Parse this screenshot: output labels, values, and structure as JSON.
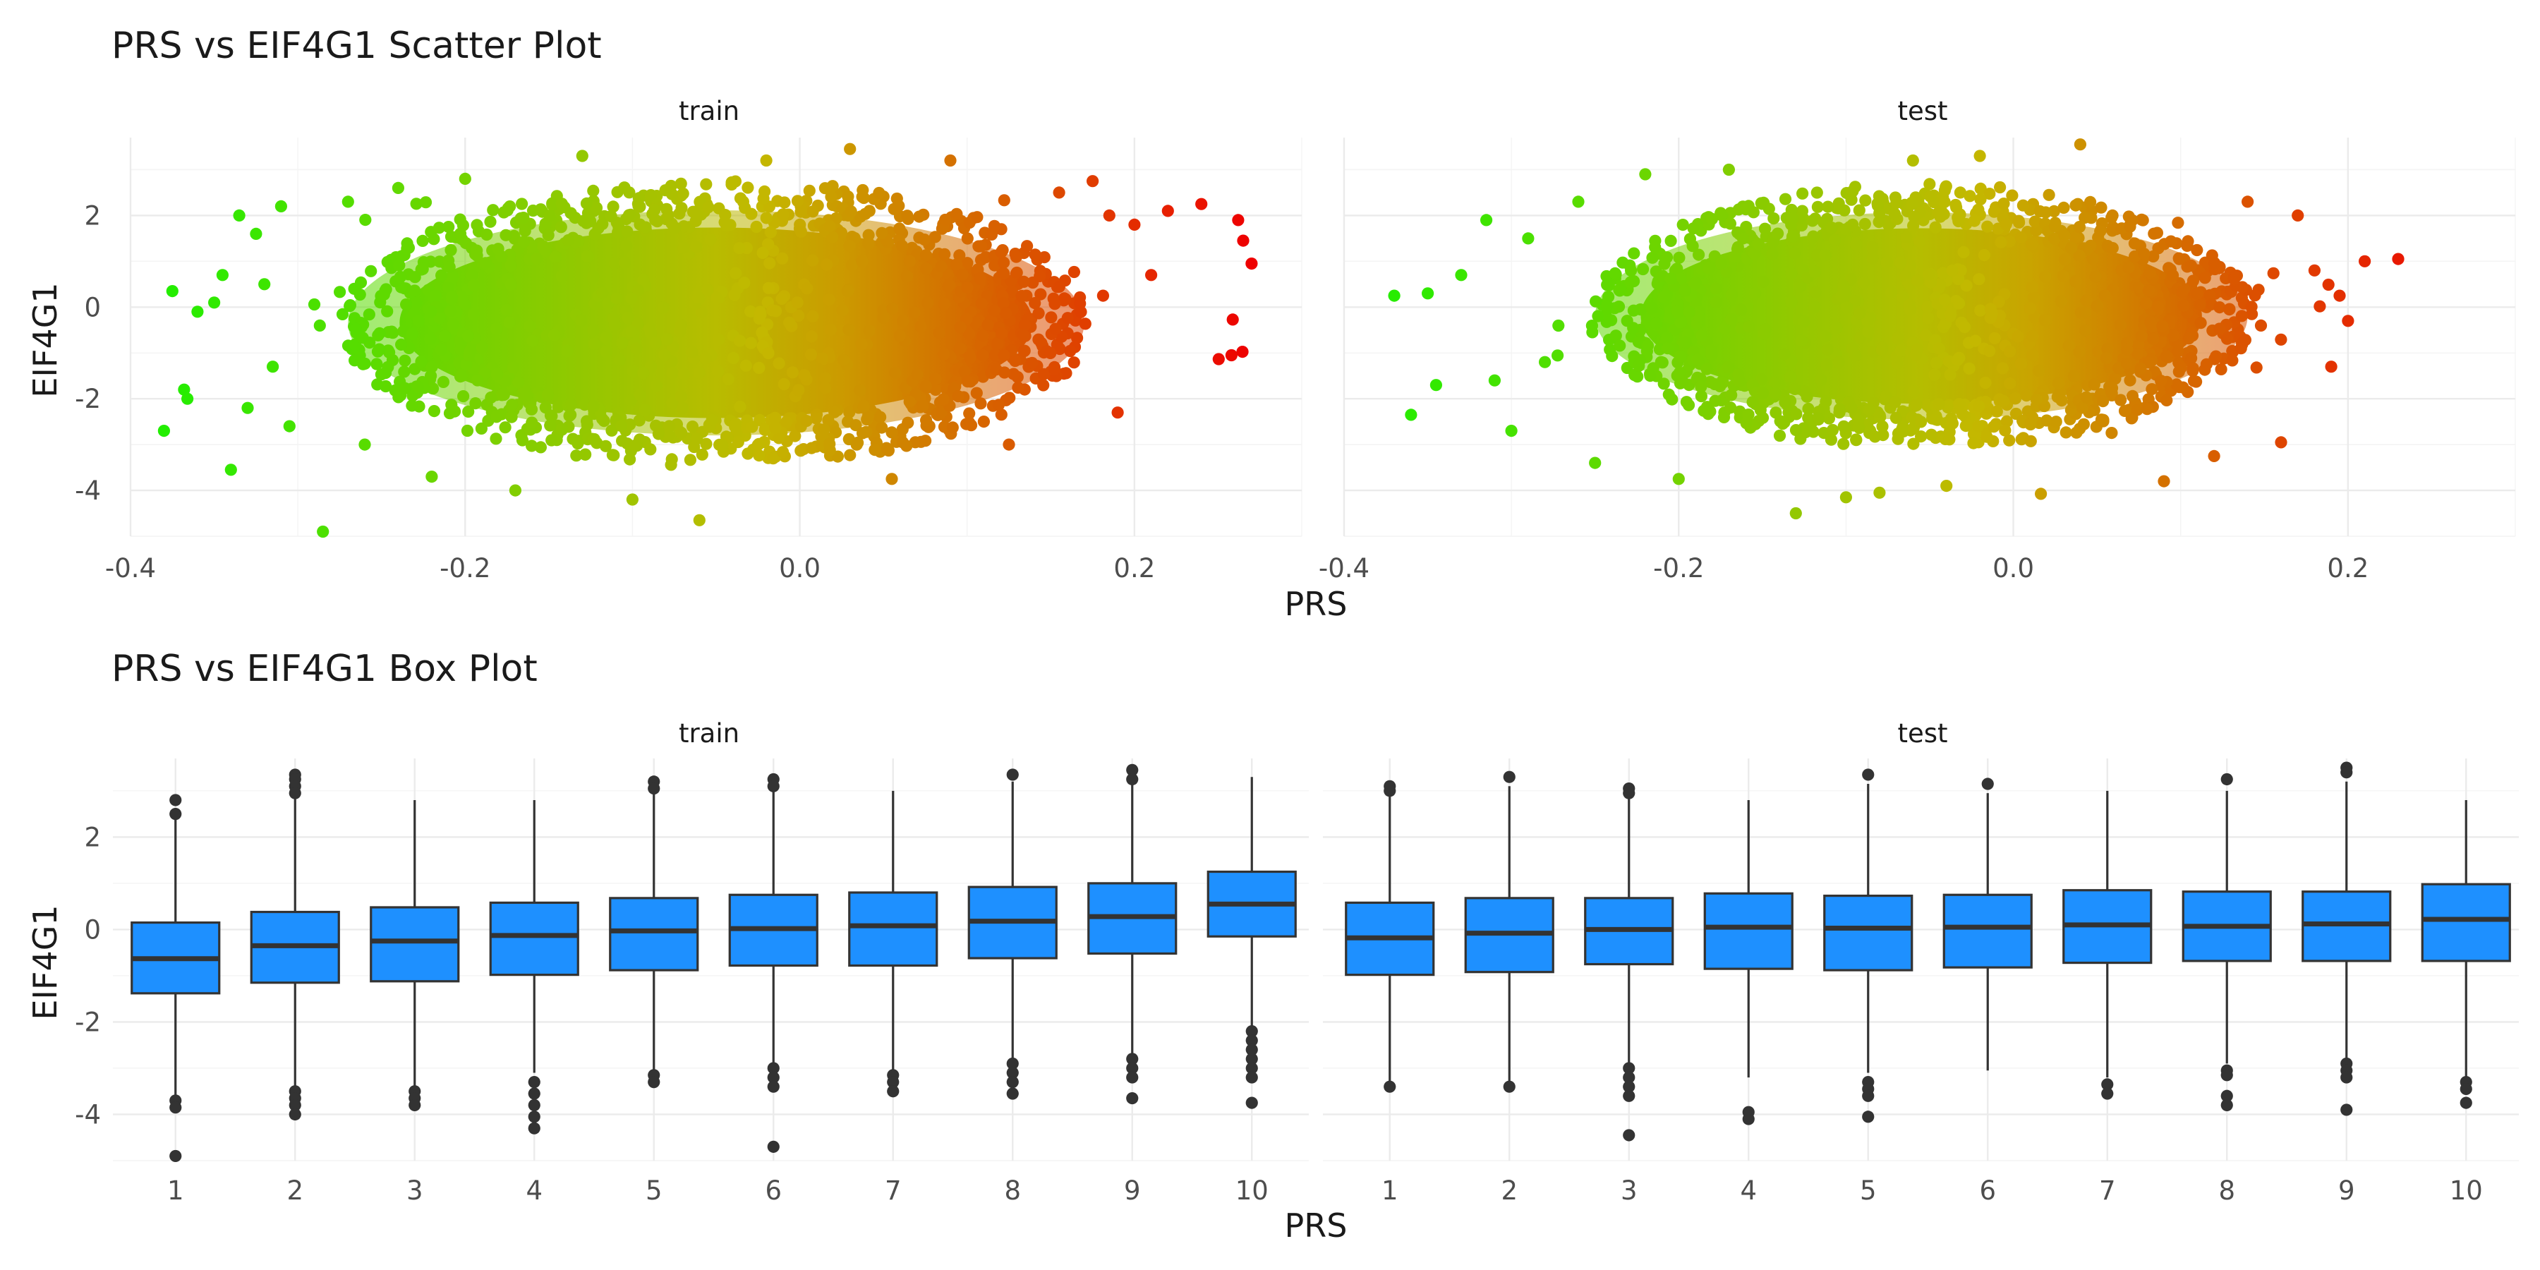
{
  "chart_data": [
    {
      "type": "scatter",
      "title": "PRS vs EIF4G1 Scatter Plot",
      "xlabel": "PRS",
      "ylabel": "EIF4G1",
      "xlim": [
        -0.4,
        0.3
      ],
      "ylim": [
        -5,
        3.7
      ],
      "x_ticks": [
        "-0.4",
        "-0.2",
        "0.0",
        "0.2"
      ],
      "y_ticks": [
        "-4",
        "-2",
        "0",
        "2"
      ],
      "color_scale": {
        "low": "#22ee00",
        "mid": "#c4b800",
        "high": "#ee0000"
      },
      "facets": [
        {
          "label": "train",
          "bulk": {
            "x_range": [
              -0.27,
              0.17
            ],
            "y_range": [
              -3.4,
              2.9
            ]
          },
          "points": [
            [
              -0.38,
              -2.7
            ],
            [
              -0.375,
              0.35
            ],
            [
              -0.368,
              -1.8
            ],
            [
              -0.366,
              -2.0
            ],
            [
              -0.36,
              -0.1
            ],
            [
              -0.35,
              0.1
            ],
            [
              -0.345,
              0.7
            ],
            [
              -0.34,
              -3.55
            ],
            [
              -0.335,
              2.0
            ],
            [
              -0.33,
              -2.2
            ],
            [
              -0.325,
              1.6
            ],
            [
              -0.32,
              0.5
            ],
            [
              -0.315,
              -1.3
            ],
            [
              -0.31,
              2.2
            ],
            [
              -0.305,
              -2.6
            ],
            [
              -0.285,
              -4.9
            ],
            [
              -0.27,
              2.3
            ],
            [
              -0.26,
              -3.0
            ],
            [
              -0.24,
              2.6
            ],
            [
              -0.22,
              -3.7
            ],
            [
              -0.2,
              2.8
            ],
            [
              -0.17,
              -4.0
            ],
            [
              -0.13,
              3.3
            ],
            [
              -0.1,
              -4.2
            ],
            [
              -0.06,
              -4.65
            ],
            [
              -0.02,
              3.2
            ],
            [
              0.03,
              3.45
            ],
            [
              0.055,
              -3.75
            ],
            [
              0.09,
              3.2
            ],
            [
              0.11,
              -2.5
            ],
            [
              0.125,
              -3.0
            ],
            [
              0.155,
              2.5
            ],
            [
              0.175,
              2.75
            ],
            [
              0.185,
              2.0
            ],
            [
              0.19,
              -2.3
            ],
            [
              0.2,
              1.8
            ],
            [
              0.21,
              0.7
            ],
            [
              0.22,
              2.1
            ],
            [
              0.24,
              2.25
            ],
            [
              0.258,
              -1.05
            ],
            [
              0.262,
              1.9
            ],
            [
              0.265,
              1.45
            ],
            [
              0.27,
              0.95
            ]
          ]
        },
        {
          "label": "test",
          "bulk": {
            "x_range": [
              -0.25,
              0.14
            ],
            "y_range": [
              -3.0,
              2.8
            ]
          },
          "points": [
            [
              -0.37,
              0.25
            ],
            [
              -0.36,
              -2.35
            ],
            [
              -0.35,
              0.3
            ],
            [
              -0.345,
              -1.7
            ],
            [
              -0.33,
              0.7
            ],
            [
              -0.315,
              1.9
            ],
            [
              -0.31,
              -1.6
            ],
            [
              -0.3,
              -2.7
            ],
            [
              -0.29,
              1.5
            ],
            [
              -0.28,
              -1.2
            ],
            [
              -0.26,
              2.3
            ],
            [
              -0.25,
              -3.4
            ],
            [
              -0.22,
              2.9
            ],
            [
              -0.2,
              -3.75
            ],
            [
              -0.17,
              3.0
            ],
            [
              -0.13,
              -4.5
            ],
            [
              -0.1,
              -4.15
            ],
            [
              -0.08,
              -4.05
            ],
            [
              -0.06,
              3.2
            ],
            [
              -0.04,
              -3.9
            ],
            [
              -0.02,
              3.3
            ],
            [
              0.04,
              3.55
            ],
            [
              0.09,
              -3.8
            ],
            [
              0.12,
              -3.25
            ],
            [
              0.14,
              2.3
            ],
            [
              0.16,
              -2.95
            ],
            [
              0.17,
              2.0
            ],
            [
              0.18,
              0.8
            ],
            [
              0.19,
              -1.3
            ],
            [
              0.195,
              0.25
            ],
            [
              0.2,
              -0.3
            ],
            [
              0.21,
              1.0
            ],
            [
              0.23,
              1.05
            ]
          ]
        }
      ]
    },
    {
      "type": "box",
      "title": "PRS vs EIF4G1 Box Plot",
      "xlabel": "PRS",
      "ylabel": "EIF4G1",
      "ylim": [
        -5,
        3.7
      ],
      "y_ticks": [
        "-4",
        "-2",
        "0",
        "2"
      ],
      "categories": [
        "1",
        "2",
        "3",
        "4",
        "5",
        "6",
        "7",
        "8",
        "9",
        "10"
      ],
      "fill": "#1e90ff",
      "facets": [
        {
          "label": "train",
          "boxes": [
            {
              "q1": -1.38,
              "median": -0.63,
              "q3": 0.15,
              "lower": -3.6,
              "upper": 2.4,
              "outliers": [
                2.8,
                2.5,
                -3.7,
                -3.85,
                -4.9
              ]
            },
            {
              "q1": -1.15,
              "median": -0.35,
              "q3": 0.38,
              "lower": -3.4,
              "upper": 2.9,
              "outliers": [
                3.35,
                3.25,
                3.1,
                2.95,
                -3.5,
                -3.65,
                -3.8,
                -4.0
              ]
            },
            {
              "q1": -1.12,
              "median": -0.25,
              "q3": 0.48,
              "lower": -3.4,
              "upper": 2.8,
              "outliers": [
                -3.5,
                -3.65,
                -3.8
              ]
            },
            {
              "q1": -0.98,
              "median": -0.13,
              "q3": 0.58,
              "lower": -3.1,
              "upper": 2.8,
              "outliers": [
                -3.3,
                -3.55,
                -3.8,
                -4.05,
                -4.3
              ]
            },
            {
              "q1": -0.88,
              "median": -0.03,
              "q3": 0.68,
              "lower": -3.1,
              "upper": 3.0,
              "outliers": [
                3.2,
                3.05,
                -3.15,
                -3.3
              ]
            },
            {
              "q1": -0.78,
              "median": 0.02,
              "q3": 0.75,
              "lower": -2.9,
              "upper": 3.05,
              "outliers": [
                3.25,
                3.1,
                -3.0,
                -3.2,
                -3.4,
                -4.7
              ]
            },
            {
              "q1": -0.78,
              "median": 0.08,
              "q3": 0.8,
              "lower": -3.1,
              "upper": 3.0,
              "outliers": [
                -3.15,
                -3.3,
                -3.5
              ]
            },
            {
              "q1": -0.62,
              "median": 0.18,
              "q3": 0.92,
              "lower": -2.8,
              "upper": 3.2,
              "outliers": [
                3.35,
                -2.9,
                -3.1,
                -3.3,
                -3.55
              ]
            },
            {
              "q1": -0.52,
              "median": 0.28,
              "q3": 1.0,
              "lower": -2.7,
              "upper": 3.2,
              "outliers": [
                3.45,
                3.25,
                -2.8,
                -3.0,
                -3.2,
                -3.65
              ]
            },
            {
              "q1": -0.15,
              "median": 0.55,
              "q3": 1.25,
              "lower": -2.1,
              "upper": 3.3,
              "outliers": [
                -2.2,
                -2.4,
                -2.6,
                -2.8,
                -3.0,
                -3.2,
                -3.75
              ]
            }
          ]
        },
        {
          "label": "test",
          "boxes": [
            {
              "q1": -0.98,
              "median": -0.18,
              "q3": 0.58,
              "lower": -3.3,
              "upper": 2.9,
              "outliers": [
                3.1,
                3.0,
                -3.4
              ]
            },
            {
              "q1": -0.92,
              "median": -0.08,
              "q3": 0.68,
              "lower": -3.3,
              "upper": 3.1,
              "outliers": [
                3.3,
                -3.4
              ]
            },
            {
              "q1": -0.75,
              "median": 0.0,
              "q3": 0.68,
              "lower": -2.9,
              "upper": 2.85,
              "outliers": [
                3.05,
                2.95,
                -3.0,
                -3.2,
                -3.4,
                -3.6,
                -4.45
              ]
            },
            {
              "q1": -0.85,
              "median": 0.05,
              "q3": 0.78,
              "lower": -3.2,
              "upper": 2.8,
              "outliers": [
                -3.95,
                -4.1
              ]
            },
            {
              "q1": -0.88,
              "median": 0.03,
              "q3": 0.73,
              "lower": -3.1,
              "upper": 3.15,
              "outliers": [
                3.35,
                -3.3,
                -3.45,
                -3.6,
                -4.05
              ]
            },
            {
              "q1": -0.82,
              "median": 0.05,
              "q3": 0.75,
              "lower": -3.05,
              "upper": 2.95,
              "outliers": [
                3.15
              ]
            },
            {
              "q1": -0.72,
              "median": 0.1,
              "q3": 0.85,
              "lower": -3.2,
              "upper": 3.0,
              "outliers": [
                -3.35,
                -3.55
              ]
            },
            {
              "q1": -0.68,
              "median": 0.07,
              "q3": 0.82,
              "lower": -2.9,
              "upper": 3.0,
              "outliers": [
                3.25,
                -3.05,
                -3.15,
                -3.6,
                -3.8
              ]
            },
            {
              "q1": -0.68,
              "median": 0.12,
              "q3": 0.82,
              "lower": -2.8,
              "upper": 3.2,
              "outliers": [
                3.5,
                3.4,
                -2.9,
                -3.05,
                -3.2,
                -3.9
              ]
            },
            {
              "q1": -0.68,
              "median": 0.22,
              "q3": 0.98,
              "lower": -3.2,
              "upper": 2.8,
              "outliers": [
                -3.3,
                -3.45,
                -3.75
              ]
            }
          ]
        }
      ]
    }
  ]
}
